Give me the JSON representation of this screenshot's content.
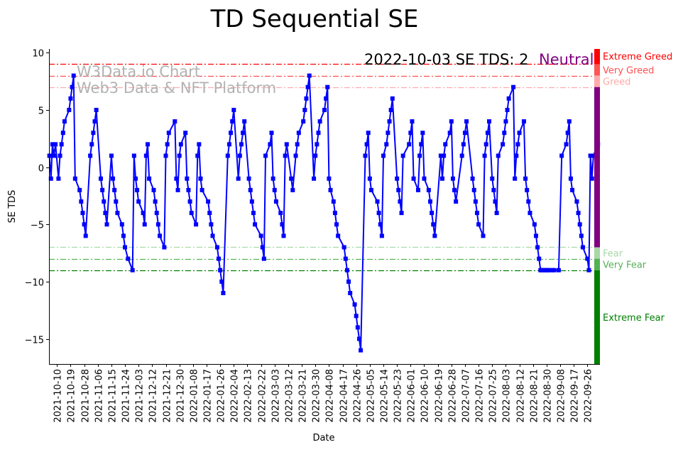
{
  "chart_data": {
    "type": "line",
    "title": "TD Sequential SE",
    "xlabel": "Date",
    "ylabel": "SE TDS",
    "x_start_date": "2021-10-05",
    "x_unit": "days since x_start_date",
    "xlim": [
      -0.3,
      364.3
    ],
    "ylim": [
      -17.2,
      10.33
    ],
    "yticks": [
      10,
      5,
      0,
      -5,
      -10,
      -15
    ],
    "xtick_labels": [
      "2021-10-10",
      "2021-10-19",
      "2021-10-28",
      "2021-11-06",
      "2021-11-15",
      "2021-11-24",
      "2021-12-03",
      "2021-12-12",
      "2021-12-21",
      "2021-12-30",
      "2022-01-08",
      "2022-01-17",
      "2022-01-26",
      "2022-02-04",
      "2022-02-13",
      "2022-02-22",
      "2022-03-03",
      "2022-03-12",
      "2022-03-21",
      "2022-03-30",
      "2022-04-08",
      "2022-04-17",
      "2022-04-26",
      "2022-05-05",
      "2022-05-14",
      "2022-05-23",
      "2022-06-01",
      "2022-06-10",
      "2022-06-19",
      "2022-06-28",
      "2022-07-07",
      "2022-07-16",
      "2022-07-25",
      "2022-08-03",
      "2022-08-12",
      "2022-08-21",
      "2022-08-30",
      "2022-09-08",
      "2022-09-17",
      "2022-09-26"
    ],
    "xtick_first_offset": 5,
    "xtick_step_days": 9,
    "grid": false,
    "series": [
      {
        "name": "SE TDS",
        "color": "#0000ff",
        "points": [
          [
            0,
            1
          ],
          [
            1,
            -1
          ],
          [
            2,
            2
          ],
          [
            3,
            1
          ],
          [
            4,
            2
          ],
          [
            6,
            -1
          ],
          [
            7,
            1
          ],
          [
            8,
            2
          ],
          [
            9,
            3
          ],
          [
            10,
            4
          ],
          [
            13,
            5
          ],
          [
            14,
            6
          ],
          [
            15,
            7
          ],
          [
            16,
            8
          ],
          [
            17,
            -1
          ],
          [
            20,
            -2
          ],
          [
            21,
            -3
          ],
          [
            22,
            -4
          ],
          [
            23,
            -5
          ],
          [
            24,
            -6
          ],
          [
            27,
            1
          ],
          [
            28,
            2
          ],
          [
            29,
            3
          ],
          [
            30,
            4
          ],
          [
            31,
            5
          ],
          [
            34,
            -1
          ],
          [
            35,
            -2
          ],
          [
            36,
            -3
          ],
          [
            37,
            -4
          ],
          [
            38,
            -5
          ],
          [
            41,
            1
          ],
          [
            42,
            -1
          ],
          [
            43,
            -2
          ],
          [
            44,
            -3
          ],
          [
            45,
            -4
          ],
          [
            48,
            -5
          ],
          [
            49,
            -6
          ],
          [
            50,
            -7
          ],
          [
            52,
            -8
          ],
          [
            55,
            -9
          ],
          [
            56,
            1
          ],
          [
            57,
            -1
          ],
          [
            58,
            -2
          ],
          [
            59,
            -3
          ],
          [
            62,
            -4
          ],
          [
            63,
            -5
          ],
          [
            64,
            1
          ],
          [
            65,
            2
          ],
          [
            66,
            -1
          ],
          [
            69,
            -2
          ],
          [
            70,
            -3
          ],
          [
            71,
            -4
          ],
          [
            72,
            -5
          ],
          [
            73,
            -6
          ],
          [
            76,
            -7
          ],
          [
            77,
            1
          ],
          [
            78,
            2
          ],
          [
            79,
            3
          ],
          [
            83,
            4
          ],
          [
            84,
            -1
          ],
          [
            85,
            -2
          ],
          [
            86,
            1
          ],
          [
            87,
            2
          ],
          [
            90,
            3
          ],
          [
            91,
            -1
          ],
          [
            92,
            -2
          ],
          [
            93,
            -3
          ],
          [
            94,
            -4
          ],
          [
            97,
            -5
          ],
          [
            98,
            1
          ],
          [
            99,
            2
          ],
          [
            100,
            -1
          ],
          [
            101,
            -2
          ],
          [
            105,
            -3
          ],
          [
            106,
            -4
          ],
          [
            107,
            -5
          ],
          [
            108,
            -6
          ],
          [
            111,
            -7
          ],
          [
            112,
            -8
          ],
          [
            113,
            -9
          ],
          [
            114,
            -10
          ],
          [
            115,
            -11
          ],
          [
            118,
            1
          ],
          [
            119,
            2
          ],
          [
            120,
            3
          ],
          [
            121,
            4
          ],
          [
            122,
            5
          ],
          [
            125,
            -1
          ],
          [
            126,
            1
          ],
          [
            127,
            2
          ],
          [
            128,
            3
          ],
          [
            129,
            4
          ],
          [
            132,
            -1
          ],
          [
            133,
            -2
          ],
          [
            134,
            -3
          ],
          [
            135,
            -4
          ],
          [
            136,
            -5
          ],
          [
            140,
            -6
          ],
          [
            141,
            -7
          ],
          [
            142,
            -8
          ],
          [
            143,
            1
          ],
          [
            146,
            2
          ],
          [
            147,
            3
          ],
          [
            148,
            -1
          ],
          [
            149,
            -2
          ],
          [
            150,
            -3
          ],
          [
            153,
            -4
          ],
          [
            154,
            -5
          ],
          [
            155,
            -6
          ],
          [
            156,
            1
          ],
          [
            157,
            2
          ],
          [
            160,
            -1
          ],
          [
            161,
            -2
          ],
          [
            163,
            1
          ],
          [
            164,
            2
          ],
          [
            165,
            3
          ],
          [
            168,
            4
          ],
          [
            169,
            5
          ],
          [
            170,
            6
          ],
          [
            171,
            7
          ],
          [
            172,
            8
          ],
          [
            175,
            -1
          ],
          [
            176,
            1
          ],
          [
            177,
            2
          ],
          [
            178,
            3
          ],
          [
            179,
            4
          ],
          [
            182,
            5
          ],
          [
            183,
            6
          ],
          [
            184,
            7
          ],
          [
            185,
            -1
          ],
          [
            186,
            -2
          ],
          [
            188,
            -3
          ],
          [
            189,
            -4
          ],
          [
            190,
            -5
          ],
          [
            191,
            -6
          ],
          [
            195,
            -7
          ],
          [
            196,
            -8
          ],
          [
            197,
            -9
          ],
          [
            198,
            -10
          ],
          [
            199,
            -11
          ],
          [
            202,
            -12
          ],
          [
            203,
            -13
          ],
          [
            204,
            -14
          ],
          [
            205,
            -15
          ],
          [
            206,
            -16
          ],
          [
            209,
            1
          ],
          [
            210,
            2
          ],
          [
            211,
            3
          ],
          [
            212,
            -1
          ],
          [
            213,
            -2
          ],
          [
            217,
            -3
          ],
          [
            218,
            -4
          ],
          [
            219,
            -5
          ],
          [
            220,
            -6
          ],
          [
            221,
            1
          ],
          [
            223,
            2
          ],
          [
            224,
            3
          ],
          [
            225,
            4
          ],
          [
            226,
            5
          ],
          [
            227,
            6
          ],
          [
            230,
            -1
          ],
          [
            231,
            -2
          ],
          [
            232,
            -3
          ],
          [
            233,
            -4
          ],
          [
            234,
            1
          ],
          [
            238,
            2
          ],
          [
            239,
            3
          ],
          [
            240,
            4
          ],
          [
            241,
            -1
          ],
          [
            244,
            -2
          ],
          [
            245,
            1
          ],
          [
            246,
            2
          ],
          [
            247,
            3
          ],
          [
            248,
            -1
          ],
          [
            251,
            -2
          ],
          [
            252,
            -3
          ],
          [
            253,
            -4
          ],
          [
            254,
            -5
          ],
          [
            255,
            -6
          ],
          [
            259,
            1
          ],
          [
            260,
            -1
          ],
          [
            261,
            1
          ],
          [
            262,
            2
          ],
          [
            265,
            3
          ],
          [
            266,
            4
          ],
          [
            267,
            -1
          ],
          [
            268,
            -2
          ],
          [
            269,
            -3
          ],
          [
            273,
            1
          ],
          [
            274,
            2
          ],
          [
            275,
            3
          ],
          [
            276,
            4
          ],
          [
            280,
            -1
          ],
          [
            281,
            -2
          ],
          [
            282,
            -3
          ],
          [
            283,
            -4
          ],
          [
            284,
            -5
          ],
          [
            287,
            -6
          ],
          [
            288,
            1
          ],
          [
            289,
            2
          ],
          [
            290,
            3
          ],
          [
            291,
            4
          ],
          [
            293,
            -1
          ],
          [
            294,
            -2
          ],
          [
            295,
            -3
          ],
          [
            296,
            -4
          ],
          [
            297,
            1
          ],
          [
            300,
            2
          ],
          [
            301,
            3
          ],
          [
            302,
            4
          ],
          [
            303,
            5
          ],
          [
            304,
            6
          ],
          [
            307,
            7
          ],
          [
            308,
            -1
          ],
          [
            309,
            1
          ],
          [
            310,
            2
          ],
          [
            311,
            3
          ],
          [
            314,
            4
          ],
          [
            315,
            -1
          ],
          [
            316,
            -2
          ],
          [
            317,
            -3
          ],
          [
            318,
            -4
          ],
          [
            321,
            -5
          ],
          [
            322,
            -6
          ],
          [
            323,
            -7
          ],
          [
            324,
            -8
          ],
          [
            325,
            -9
          ],
          [
            326,
            -9
          ],
          [
            327,
            -9
          ],
          [
            328,
            -9
          ],
          [
            329,
            -9
          ],
          [
            330,
            -9
          ],
          [
            331,
            -9
          ],
          [
            333,
            -9
          ],
          [
            334,
            -9
          ],
          [
            337,
            -9
          ],
          [
            339,
            1
          ],
          [
            342,
            2
          ],
          [
            343,
            3
          ],
          [
            344,
            4
          ],
          [
            345,
            -1
          ],
          [
            346,
            -2
          ],
          [
            349,
            -3
          ],
          [
            350,
            -4
          ],
          [
            351,
            -5
          ],
          [
            352,
            -6
          ],
          [
            353,
            -7
          ],
          [
            356,
            -8
          ],
          [
            357,
            -9
          ],
          [
            358,
            1
          ],
          [
            359,
            -1
          ],
          [
            360,
            1
          ],
          [
            363,
            2
          ]
        ]
      }
    ],
    "thresholds": [
      {
        "value": 9,
        "color": "#ff0000"
      },
      {
        "value": 8,
        "color": "#ff5050"
      },
      {
        "value": 7,
        "color": "#ffaaaa"
      },
      {
        "value": -7,
        "color": "#a8dca8"
      },
      {
        "value": -8,
        "color": "#55b855"
      },
      {
        "value": -9,
        "color": "#008000"
      }
    ],
    "zones": [
      {
        "label": "Extreme Greed",
        "from": 9,
        "to": 10.33,
        "color": "#ff0000",
        "text_color": "#ff0000",
        "label_at": 9.7
      },
      {
        "label": "Very Greed",
        "from": 8,
        "to": 9,
        "color": "#ff5555",
        "text_color": "#ff5050",
        "label_at": 8.5
      },
      {
        "label": "Greed",
        "from": 7,
        "to": 8,
        "color": "#ffaaaa",
        "text_color": "#ffaaaa",
        "label_at": 7.5
      },
      {
        "label": "",
        "from": -7,
        "to": 7,
        "color": "#800080",
        "text_color": "#800080",
        "label_at": 0
      },
      {
        "label": "Fear",
        "from": -8,
        "to": -7,
        "color": "#a8d8a8",
        "text_color": "#a8d8a8",
        "label_at": -7.5
      },
      {
        "label": "Very Fear",
        "from": -9,
        "to": -8,
        "color": "#55b055",
        "text_color": "#55b055",
        "label_at": -8.5
      },
      {
        "label": "Extreme Fear",
        "from": -17.2,
        "to": -9,
        "color": "#008000",
        "text_color": "#008000",
        "label_at": -13.1
      }
    ],
    "annotation": {
      "text": "2022-10-03 SE TDS: 2",
      "status": "Neutral",
      "status_color": "#800080"
    },
    "watermark": {
      "line1": "W3Data.io Chart",
      "line2": "Web3 Data & NFT Platform"
    }
  }
}
